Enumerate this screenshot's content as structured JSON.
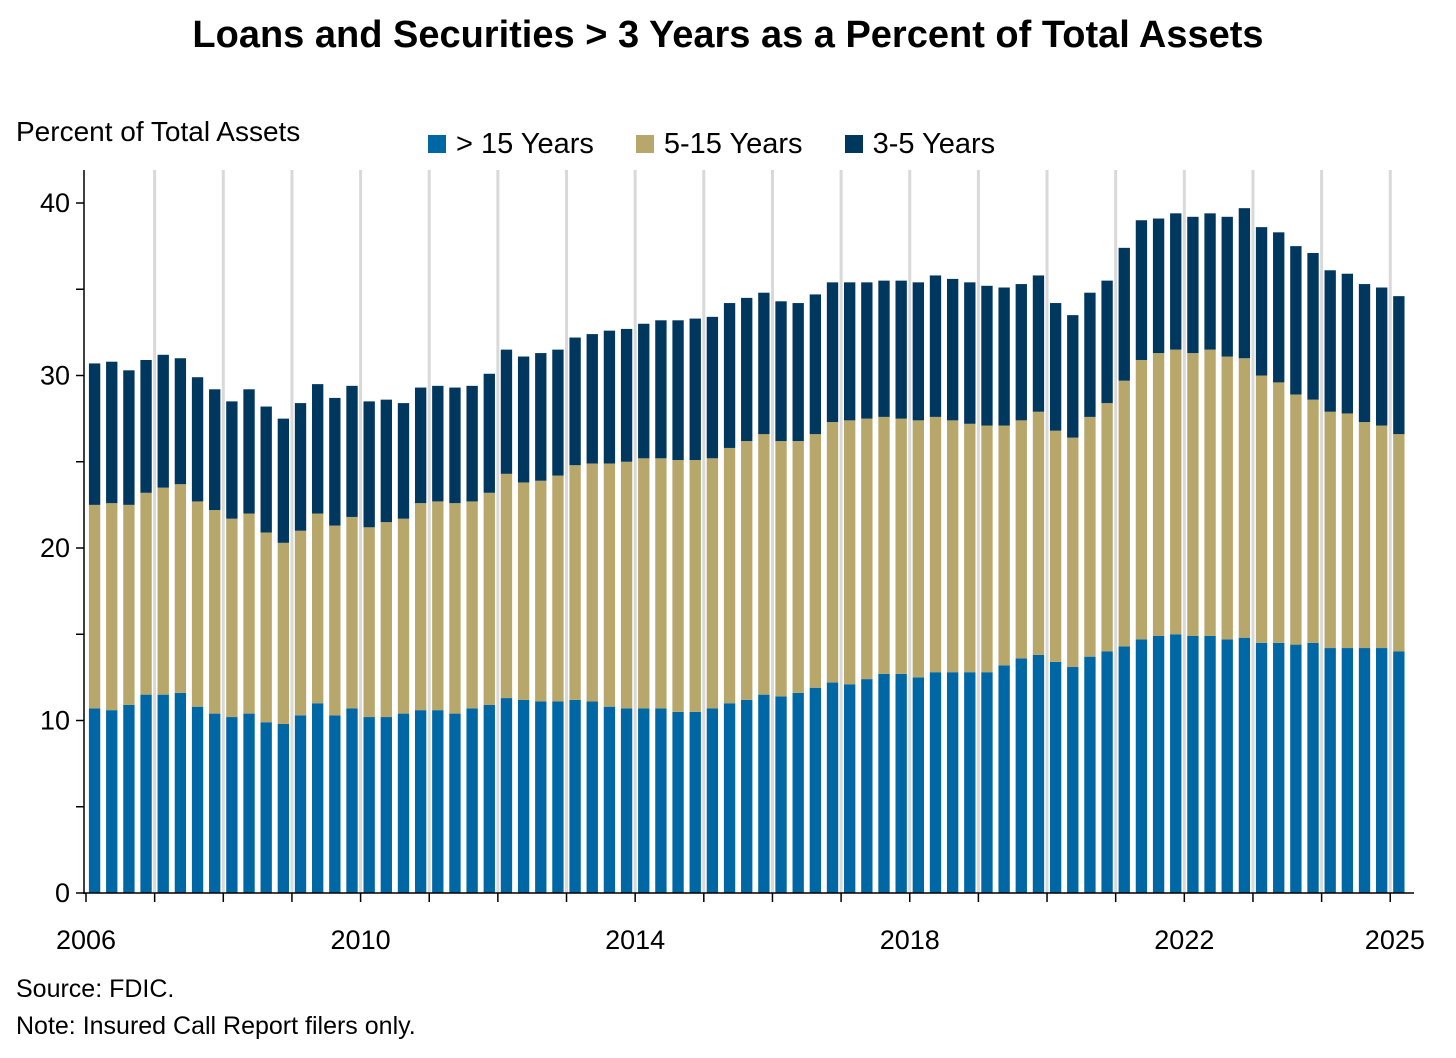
{
  "title": "Loans and Securities > 3 Years as a Percent of Total Assets",
  "footer": {
    "source": "Source: FDIC.",
    "note": "Note: Insured Call Report filers only."
  },
  "colors": {
    "gt15": "#0067a5",
    "y5to15": "#b8a76a",
    "y3to5": "#00375e",
    "grid": "#d9d9d9",
    "axis": "#000000"
  },
  "chart_data": {
    "type": "bar",
    "stacked": true,
    "title": "Loans and Securities > 3 Years as a Percent of Total Assets",
    "ylabel": "Percent of Total Assets",
    "xlabel": "",
    "ylim": [
      0,
      42
    ],
    "yticks": [
      0,
      10,
      20,
      30,
      40
    ],
    "xticks": [
      "2006",
      "2010",
      "2014",
      "2018",
      "2022",
      "2025"
    ],
    "x_start": "2006Q1",
    "x_end": "2025Q1",
    "frequency": "quarterly",
    "grid": "vertical lines at year boundaries",
    "legend_position": "top",
    "series": [
      {
        "name": "> 15 Years",
        "color": "#0067a5",
        "values": [
          10.7,
          10.6,
          10.9,
          11.5,
          11.5,
          11.6,
          10.8,
          10.4,
          10.2,
          10.4,
          9.9,
          9.8,
          10.3,
          11.0,
          10.3,
          10.7,
          10.2,
          10.2,
          10.4,
          10.6,
          10.6,
          10.4,
          10.7,
          10.9,
          11.3,
          11.2,
          11.1,
          11.1,
          11.2,
          11.1,
          10.8,
          10.7,
          10.7,
          10.7,
          10.5,
          10.5,
          10.7,
          11.0,
          11.2,
          11.5,
          11.4,
          11.6,
          11.9,
          12.2,
          12.1,
          12.4,
          12.7,
          12.7,
          12.5,
          12.8,
          12.8,
          12.8,
          12.8,
          13.2,
          13.6,
          13.8,
          13.4,
          13.1,
          13.7,
          14.0,
          14.3,
          14.7,
          14.9,
          15.0,
          14.9,
          14.9,
          14.7,
          14.8,
          14.5,
          14.5,
          14.4,
          14.5,
          14.2,
          14.2,
          14.2,
          14.2,
          14.0
        ]
      },
      {
        "name": "5-15 Years",
        "color": "#b8a76a",
        "values": [
          11.8,
          12.0,
          11.6,
          11.7,
          12.0,
          12.1,
          11.9,
          11.8,
          11.5,
          11.6,
          11.0,
          10.5,
          10.7,
          11.0,
          11.0,
          11.1,
          11.0,
          11.3,
          11.3,
          12.0,
          12.1,
          12.2,
          12.0,
          12.3,
          13.0,
          12.6,
          12.8,
          13.1,
          13.6,
          13.8,
          14.1,
          14.3,
          14.5,
          14.5,
          14.6,
          14.6,
          14.5,
          14.8,
          15.0,
          15.1,
          14.8,
          14.6,
          14.7,
          15.1,
          15.3,
          15.1,
          14.9,
          14.8,
          14.9,
          14.8,
          14.6,
          14.4,
          14.3,
          13.9,
          13.8,
          14.1,
          13.4,
          13.3,
          13.9,
          14.4,
          15.4,
          16.2,
          16.4,
          16.5,
          16.4,
          16.6,
          16.4,
          16.2,
          15.5,
          15.1,
          14.5,
          14.1,
          13.7,
          13.6,
          13.1,
          12.9,
          12.6
        ]
      },
      {
        "name": "3-5 Years",
        "color": "#00375e",
        "values": [
          8.2,
          8.2,
          7.8,
          7.7,
          7.7,
          7.3,
          7.2,
          7.0,
          6.8,
          7.2,
          7.3,
          7.2,
          7.4,
          7.5,
          7.4,
          7.6,
          7.3,
          7.1,
          6.7,
          6.7,
          6.7,
          6.7,
          6.7,
          6.9,
          7.2,
          7.3,
          7.4,
          7.3,
          7.4,
          7.5,
          7.7,
          7.7,
          7.8,
          8.0,
          8.1,
          8.2,
          8.2,
          8.4,
          8.3,
          8.2,
          8.1,
          8.0,
          8.1,
          8.1,
          8.0,
          7.9,
          7.9,
          8.0,
          8.0,
          8.2,
          8.2,
          8.2,
          8.1,
          8.0,
          7.9,
          7.9,
          7.4,
          7.1,
          7.2,
          7.1,
          7.7,
          8.1,
          7.8,
          7.9,
          7.9,
          7.9,
          8.1,
          8.7,
          8.6,
          8.7,
          8.6,
          8.5,
          8.2,
          8.1,
          8.0,
          8.0,
          8.0
        ]
      }
    ]
  }
}
